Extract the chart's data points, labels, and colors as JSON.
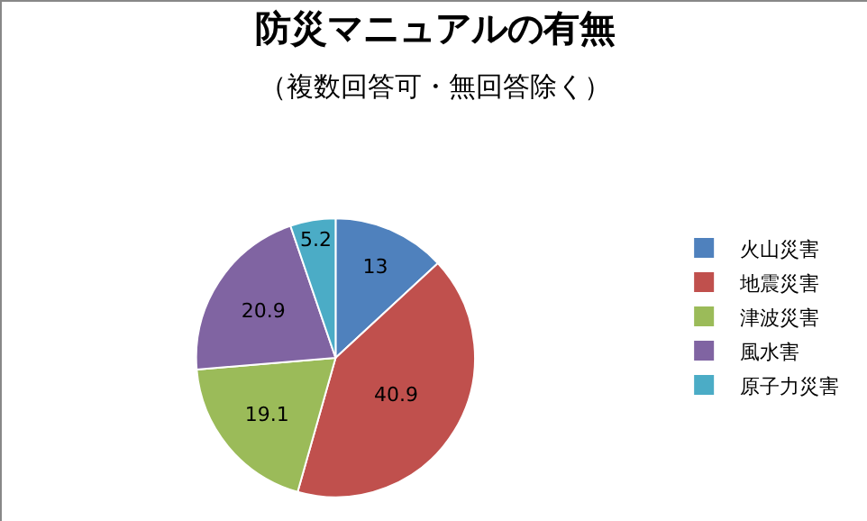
{
  "chart_data": {
    "type": "pie",
    "title": "防災マニュアルの有無",
    "subtitle": "（複数回答可・無回答除く）",
    "categories": [
      "火山災害",
      "地震災害",
      "津波災害",
      "風水害",
      "原子力災害"
    ],
    "values": [
      13,
      40.9,
      19.1,
      20.9,
      5.2
    ],
    "colors": [
      "#4f81bd",
      "#c0504d",
      "#9bbb59",
      "#8064a2",
      "#4bacc6"
    ],
    "data_labels": true,
    "legend": "right"
  }
}
